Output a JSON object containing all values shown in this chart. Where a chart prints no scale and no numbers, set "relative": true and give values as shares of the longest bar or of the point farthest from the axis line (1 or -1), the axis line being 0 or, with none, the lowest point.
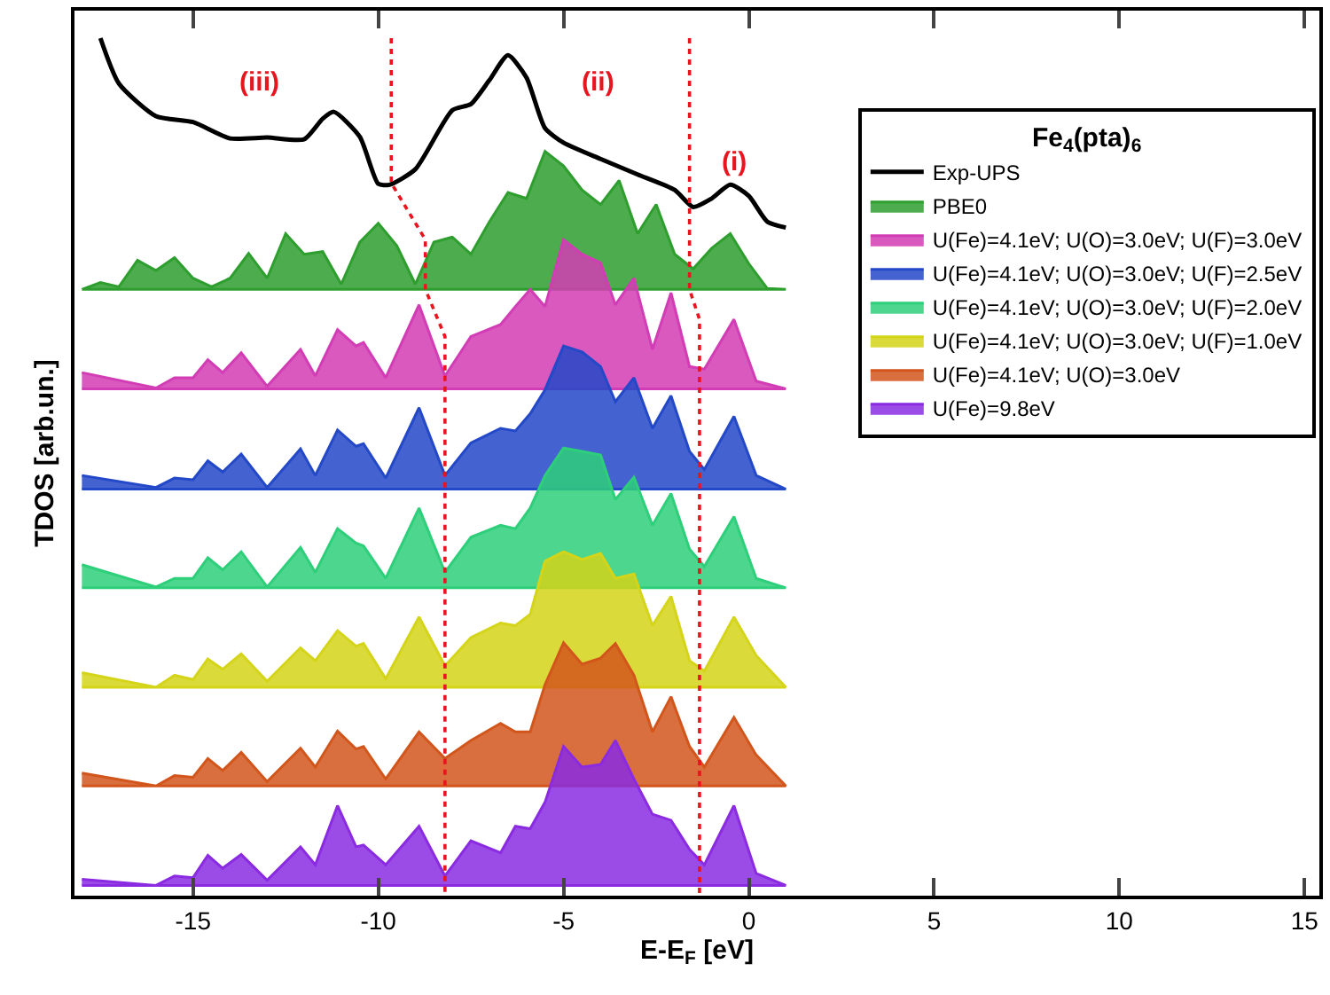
{
  "chart_data": {
    "type": "area",
    "relative": true,
    "xlabel": "E-E$_{F}$ [eV]",
    "ylabel": "TDOS [arb.un.]",
    "legend_title": "Fe$_{4}$(pta)$_{6}$",
    "legend": "right",
    "tick_labels": "x",
    "line_style": "solid",
    "xlim": [
      -18.2,
      15.4
    ],
    "xticks": [
      -15,
      -10,
      -5,
      0,
      5,
      10,
      15
    ],
    "x": [
      -18,
      -16,
      -15.5,
      -15,
      -14.6,
      -14.2,
      -13.7,
      -13,
      -12.1,
      -11.7,
      -11.1,
      -10.6,
      -10.4,
      -9.8,
      -8.9,
      -8.2,
      -7.5,
      -6.7,
      -6.3,
      -5.9,
      -5.5,
      -5,
      -4.5,
      -4,
      -3.6,
      -3.1,
      -2.6,
      -2.1,
      -1.6,
      -1.2,
      -0.4,
      0.2,
      1
    ],
    "annotations": [
      "(iii)",
      "(ii)",
      "(i)"
    ],
    "series": [
      {
        "name": "Exp-UPS",
        "type": "line",
        "color": "#000000",
        "x": [
          -17.5,
          -17,
          -16,
          -15,
          -14,
          -13,
          -12,
          -11.5,
          -11.2,
          -10.5,
          -10,
          -9.7,
          -9,
          -8,
          -7.5,
          -7,
          -6.5,
          -6,
          -5.5,
          -5,
          -4,
          -3,
          -2,
          -1.5,
          -1,
          -0.5,
          0,
          0.5,
          1
        ],
        "values": [
          1.0,
          0.947,
          0.909,
          0.902,
          0.883,
          0.884,
          0.882,
          0.906,
          0.914,
          0.885,
          0.83,
          0.829,
          0.847,
          0.916,
          0.923,
          0.951,
          0.98,
          0.954,
          0.895,
          0.878,
          0.859,
          0.841,
          0.823,
          0.803,
          0.813,
          0.829,
          0.816,
          0.786,
          0.779
        ]
      },
      {
        "name": "PBE0",
        "color": "#2e9e2e",
        "x": [
          -18,
          -17.5,
          -17,
          -16.5,
          -16,
          -15.5,
          -15,
          -14.5,
          -14,
          -13.5,
          -13,
          -12.5,
          -12,
          -11.5,
          -11,
          -10.5,
          -10,
          -9.5,
          -9,
          -8.5,
          -8,
          -7.5,
          -7,
          -6.5,
          -6,
          -5.5,
          -5,
          -4.5,
          -4,
          -3.5,
          -3,
          -2.5,
          -2,
          -1.5,
          -1,
          -0.5,
          0,
          0.5,
          1
        ],
        "values": [
          0.707,
          0.715,
          0.71,
          0.741,
          0.729,
          0.744,
          0.72,
          0.71,
          0.72,
          0.749,
          0.72,
          0.772,
          0.748,
          0.751,
          0.713,
          0.762,
          0.784,
          0.758,
          0.713,
          0.762,
          0.768,
          0.748,
          0.786,
          0.82,
          0.813,
          0.868,
          0.851,
          0.823,
          0.806,
          0.834,
          0.772,
          0.806,
          0.748,
          0.731,
          0.755,
          0.772,
          0.737,
          0.708,
          0.707
        ]
      },
      {
        "name": "U(Fe)=4.1eV; U(O)=3.0eV; U(F)=3.0eV",
        "color": "#d23cb4",
        "values": [
          0.61,
          0.592,
          0.604,
          0.604,
          0.625,
          0.61,
          0.633,
          0.594,
          0.637,
          0.606,
          0.66,
          0.641,
          0.645,
          0.604,
          0.689,
          0.606,
          0.652,
          0.666,
          0.687,
          0.707,
          0.687,
          0.765,
          0.748,
          0.738,
          0.689,
          0.72,
          0.637,
          0.703,
          0.617,
          0.614,
          0.672,
          0.6,
          0.591
        ]
      },
      {
        "name": "U(Fe)=4.1eV; U(O)=3.0eV; U(F)=2.5eV",
        "color": "#2348c8",
        "values": [
          0.49,
          0.476,
          0.487,
          0.485,
          0.507,
          0.494,
          0.515,
          0.476,
          0.521,
          0.49,
          0.543,
          0.524,
          0.527,
          0.487,
          0.569,
          0.49,
          0.528,
          0.545,
          0.542,
          0.562,
          0.59,
          0.641,
          0.634,
          0.617,
          0.576,
          0.604,
          0.545,
          0.583,
          0.518,
          0.497,
          0.559,
          0.49,
          0.474
        ]
      },
      {
        "name": "U(Fe)=4.1eV; U(O)=3.0eV; U(F)=2.0eV",
        "color": "#2ecf7a",
        "values": [
          0.386,
          0.36,
          0.37,
          0.37,
          0.394,
          0.38,
          0.401,
          0.36,
          0.406,
          0.377,
          0.428,
          0.411,
          0.408,
          0.37,
          0.452,
          0.377,
          0.418,
          0.432,
          0.428,
          0.452,
          0.49,
          0.522,
          0.518,
          0.514,
          0.462,
          0.488,
          0.432,
          0.469,
          0.404,
          0.384,
          0.442,
          0.37,
          0.359
        ]
      },
      {
        "name": "U(Fe)=4.1eV; U(O)=3.0eV; U(F)=1.0eV",
        "color": "#d4d419",
        "values": [
          0.26,
          0.243,
          0.257,
          0.252,
          0.276,
          0.264,
          0.282,
          0.25,
          0.289,
          0.274,
          0.309,
          0.291,
          0.294,
          0.253,
          0.325,
          0.268,
          0.301,
          0.318,
          0.315,
          0.328,
          0.39,
          0.401,
          0.392,
          0.399,
          0.37,
          0.375,
          0.315,
          0.349,
          0.274,
          0.262,
          0.325,
          0.28,
          0.243
        ]
      },
      {
        "name": "U(Fe)=4.1eV; U(O)=3.0eV",
        "color": "#d2561c",
        "values": [
          0.143,
          0.128,
          0.14,
          0.138,
          0.16,
          0.146,
          0.167,
          0.133,
          0.172,
          0.15,
          0.192,
          0.171,
          0.174,
          0.136,
          0.191,
          0.16,
          0.181,
          0.201,
          0.191,
          0.191,
          0.246,
          0.295,
          0.27,
          0.277,
          0.294,
          0.257,
          0.191,
          0.232,
          0.174,
          0.15,
          0.208,
          0.164,
          0.128
        ]
      },
      {
        "name": "U(Fe)=9.8eV",
        "color": "#8a2be2",
        "values": [
          0.019,
          0.012,
          0.023,
          0.021,
          0.047,
          0.032,
          0.048,
          0.018,
          0.057,
          0.036,
          0.105,
          0.057,
          0.059,
          0.036,
          0.081,
          0.023,
          0.064,
          0.05,
          0.081,
          0.078,
          0.109,
          0.174,
          0.15,
          0.153,
          0.181,
          0.136,
          0.095,
          0.088,
          0.054,
          0.036,
          0.105,
          0.026,
          0.012
        ]
      },
      {
        "type": "line",
        "color": "#e8141e",
        "line_style": "dotted",
        "x": [
          -9.65,
          -9.65,
          -8.73,
          -8.73,
          -8.2,
          -8.2
        ],
        "values": [
          1.0,
          0.831,
          0.765,
          0.707,
          0.652,
          0.0
        ]
      },
      {
        "type": "line",
        "color": "#e8141e",
        "line_style": "dotted",
        "x": [
          -1.6,
          -1.6,
          -1.33,
          -1.33
        ],
        "values": [
          1.0,
          0.707,
          0.672,
          0.0
        ]
      }
    ]
  }
}
